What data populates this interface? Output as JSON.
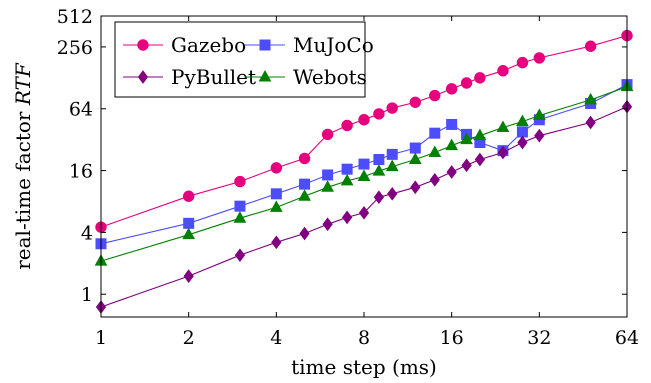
{
  "chart_data": {
    "type": "line",
    "xlabel": "time step (ms)",
    "ylabel": "real-time factor RTF",
    "ylabel_text": "real-time factor ",
    "ylabel_symbol": "RTF",
    "x_scale": "log2",
    "y_scale": "log2",
    "xlim": [
      1,
      64
    ],
    "ylim": [
      0.6,
      512
    ],
    "x_ticks": [
      1,
      2,
      4,
      8,
      16,
      32,
      64
    ],
    "y_ticks": [
      1,
      4,
      16,
      64,
      256,
      512
    ],
    "grid": false,
    "legend_position": "top-left",
    "series": [
      {
        "name": "Gazebo",
        "color": "#e6007e",
        "marker": "circle",
        "x": [
          1,
          2,
          3,
          4,
          5,
          6,
          7,
          8,
          9,
          10,
          12,
          14,
          16,
          18,
          20,
          24,
          28,
          32,
          48,
          64
        ],
        "y": [
          4.5,
          9,
          12.5,
          17,
          21,
          36,
          44,
          50,
          57,
          65,
          74,
          86,
          100,
          114,
          128,
          150,
          180,
          200,
          260,
          330
        ]
      },
      {
        "name": "MuJoCo",
        "color": "#4d4dff",
        "marker": "square",
        "x": [
          1,
          2,
          3,
          4,
          5,
          6,
          7,
          8,
          9,
          10,
          12,
          14,
          16,
          18,
          20,
          24,
          28,
          32,
          48,
          64
        ],
        "y": [
          3.1,
          4.9,
          7.2,
          9.5,
          11.8,
          14.5,
          16.5,
          18.5,
          20.5,
          23,
          26.5,
          37,
          45,
          36,
          30,
          25,
          38,
          50,
          72,
          110
        ]
      },
      {
        "name": "PyBullet",
        "color": "#800080",
        "marker": "diamond",
        "x": [
          1,
          2,
          3,
          4,
          5,
          6,
          7,
          8,
          9,
          10,
          12,
          14,
          16,
          18,
          20,
          24,
          28,
          32,
          48,
          64
        ],
        "y": [
          0.75,
          1.5,
          2.4,
          3.2,
          3.9,
          4.8,
          5.6,
          6.2,
          8.8,
          9.5,
          11,
          13,
          15.5,
          18,
          20.5,
          24,
          30,
          35,
          47,
          67
        ]
      },
      {
        "name": "Webots",
        "color": "#008000",
        "marker": "triangle",
        "x": [
          1,
          2,
          3,
          4,
          5,
          6,
          7,
          8,
          9,
          10,
          12,
          14,
          16,
          18,
          20,
          24,
          28,
          32,
          48,
          64
        ],
        "y": [
          2.1,
          3.8,
          5.5,
          7,
          9,
          11,
          12.7,
          14,
          15.8,
          17.5,
          20.5,
          24,
          28,
          32,
          35,
          42,
          48,
          55,
          78,
          105
        ]
      }
    ]
  }
}
